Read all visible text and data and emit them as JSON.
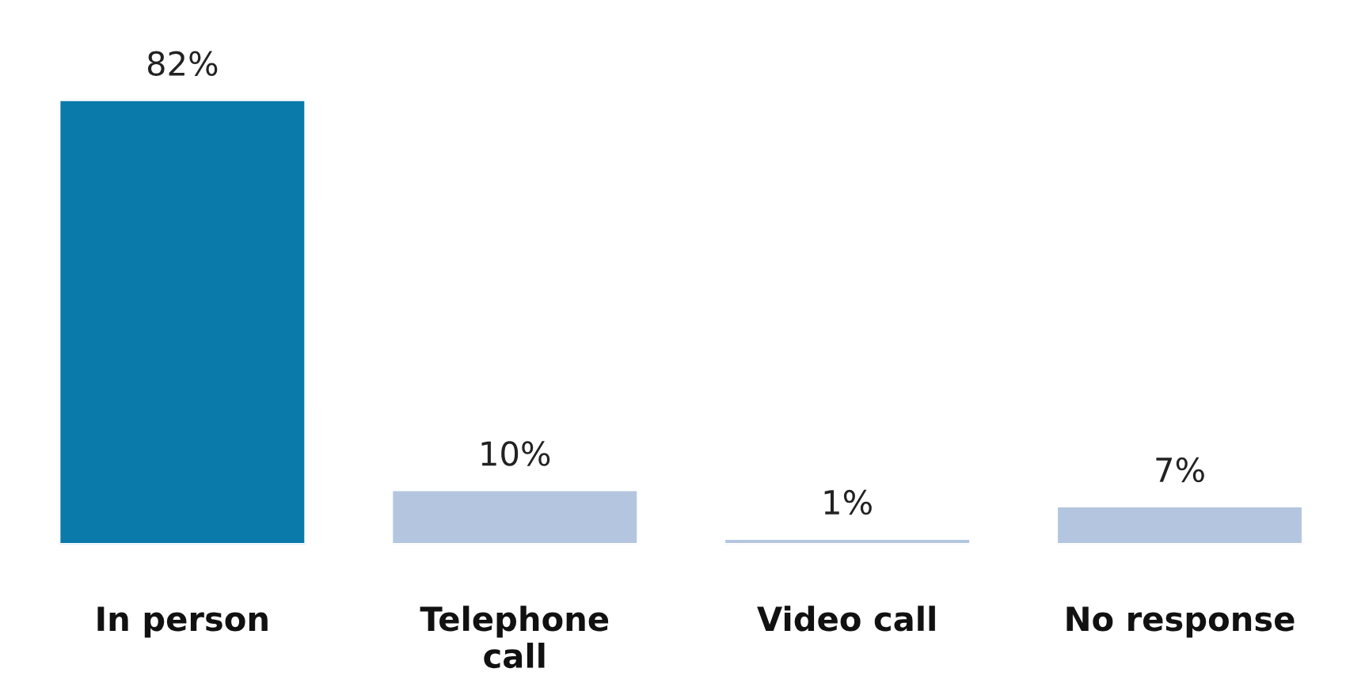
{
  "chart_data": {
    "type": "bar",
    "categories": [
      "In person",
      "Telephone\ncall",
      "Video call",
      "No response"
    ],
    "values": [
      82,
      10,
      1,
      7
    ],
    "colors": [
      "#0a7aab",
      "#b4c6df",
      "#b4c6df",
      "#b4c6df"
    ],
    "value_labels": [
      "82%",
      "10%",
      "1%",
      "7%"
    ],
    "grid": false,
    "legend": false
  }
}
